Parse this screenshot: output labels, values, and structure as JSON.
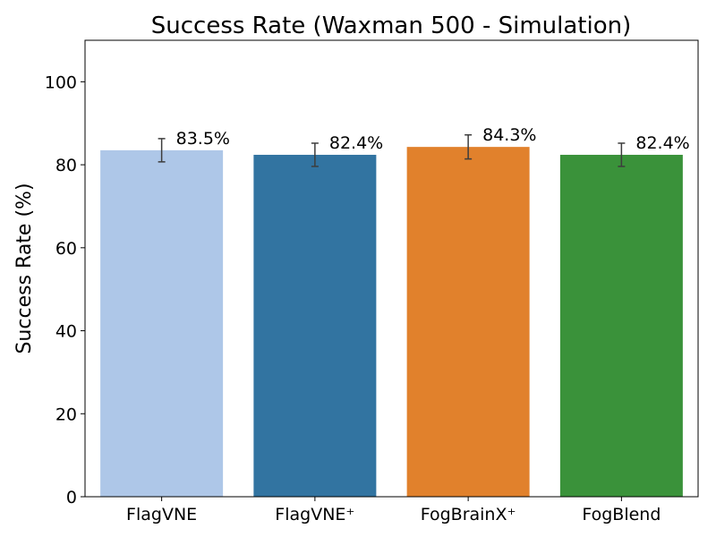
{
  "chart_data": {
    "type": "bar",
    "title": "Success Rate (Waxman 500 - Simulation)",
    "xlabel": "",
    "ylabel": "Success Rate (%)",
    "ylim": [
      0,
      110
    ],
    "yticks": [
      "0",
      "20",
      "40",
      "60",
      "80",
      "100"
    ],
    "grid": false,
    "categories": [
      "FlagVNE",
      "FlagVNE⁺",
      "FogBrainX⁺",
      "FogBlend"
    ],
    "values": [
      83.5,
      82.4,
      84.3,
      82.4
    ],
    "error_bars": [
      2.8,
      2.8,
      2.9,
      2.8
    ],
    "data_labels": [
      "83.5%",
      "82.4%",
      "84.3%",
      "82.4%"
    ],
    "colors": [
      "#aec7e8",
      "#3274a1",
      "#e1812c",
      "#3a923a"
    ]
  }
}
